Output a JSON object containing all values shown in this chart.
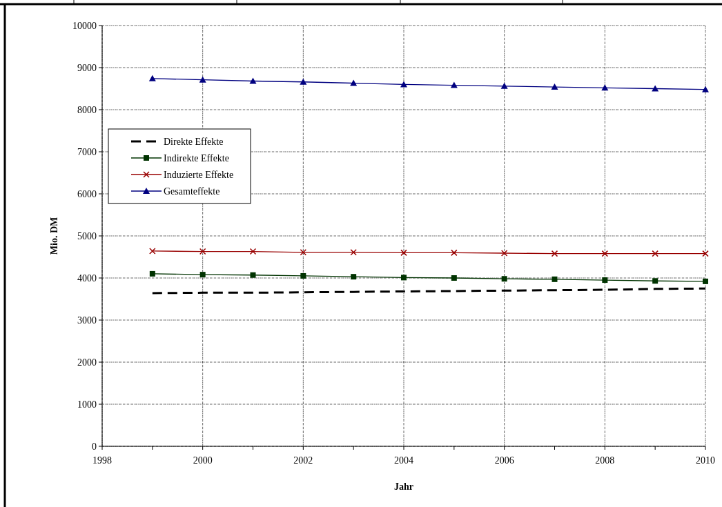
{
  "chart_data": {
    "type": "line",
    "xlabel": "Jahr",
    "ylabel": "Mio. DM",
    "x": [
      1999,
      2000,
      2001,
      2002,
      2003,
      2004,
      2005,
      2006,
      2007,
      2008,
      2009,
      2010
    ],
    "xlim": [
      1998,
      2010
    ],
    "xticks": [
      1998,
      2000,
      2002,
      2004,
      2006,
      2008,
      2010
    ],
    "ylim": [
      0,
      10000
    ],
    "yticks": [
      0,
      1000,
      2000,
      3000,
      4000,
      5000,
      6000,
      7000,
      8000,
      9000,
      10000
    ],
    "grid": true,
    "legend": "left",
    "series": [
      {
        "name": "Direkte Effekte",
        "color": "#000000",
        "line_style": "dashed",
        "marker": "none",
        "values": [
          3640,
          3650,
          3650,
          3660,
          3670,
          3680,
          3690,
          3700,
          3710,
          3720,
          3740,
          3750
        ]
      },
      {
        "name": "Indirekte Effekte",
        "color": "#003300",
        "marker": "square",
        "values": [
          4100,
          4080,
          4070,
          4050,
          4030,
          4010,
          4000,
          3980,
          3970,
          3950,
          3930,
          3920
        ]
      },
      {
        "name": "Induzierte Effekte",
        "color": "#990000",
        "marker": "cross",
        "values": [
          4640,
          4630,
          4630,
          4610,
          4610,
          4600,
          4600,
          4590,
          4580,
          4580,
          4580,
          4580
        ]
      },
      {
        "name": "Gesamteffekte",
        "color": "#000080",
        "marker": "triangle",
        "values": [
          8740,
          8710,
          8680,
          8660,
          8630,
          8600,
          8580,
          8560,
          8540,
          8520,
          8500,
          8480
        ]
      }
    ]
  }
}
